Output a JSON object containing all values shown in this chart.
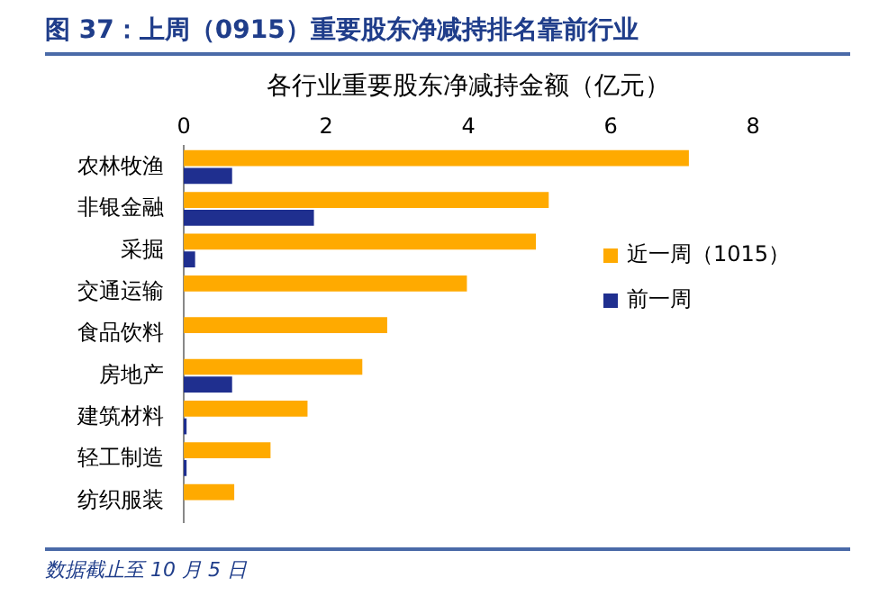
{
  "chart_data": {
    "type": "bar",
    "orientation": "horizontal",
    "title": "图 37：上周（0915）重要股东净减持排名靠前行业",
    "xlabel": "各行业重要股东净减持金额（亿元）",
    "categories": [
      "农林牧渔",
      "非银金融",
      "采掘",
      "交通运输",
      "食品饮料",
      "房地产",
      "建筑材料",
      "轻工制造",
      "纺织服装"
    ],
    "series": [
      {
        "name": "近一周（1015）",
        "color": "#ffaa00",
        "values": [
          7.1,
          5.13,
          4.95,
          3.98,
          2.86,
          2.51,
          1.74,
          1.22,
          0.71
        ]
      },
      {
        "name": "前一周",
        "color": "#1f2f8f",
        "values": [
          0.68,
          1.83,
          0.16,
          null,
          null,
          0.68,
          0.04,
          0.04,
          null
        ]
      }
    ],
    "xlim": [
      0,
      8
    ],
    "xticks": [
      0,
      2,
      4,
      6,
      8
    ],
    "legend": "right",
    "annotations": [
      "数据截止至 10 月 5 日"
    ]
  }
}
